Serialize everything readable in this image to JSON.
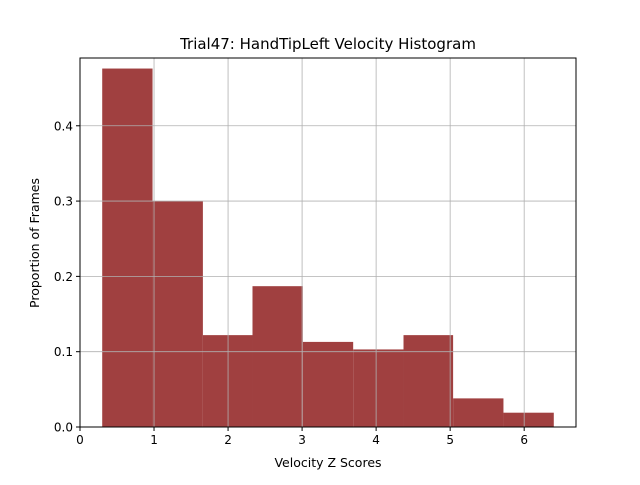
{
  "chart_data": {
    "type": "bar",
    "title": "Trial47: HandTipLeft Velocity Histogram",
    "xlabel": "Velocity Z Scores",
    "ylabel": "Proportion of Frames",
    "xlim": [
      0,
      6.7
    ],
    "ylim": [
      0,
      0.49
    ],
    "xticks": [
      0,
      1,
      2,
      3,
      4,
      5,
      6
    ],
    "xtick_labels": [
      "0",
      "1",
      "2",
      "3",
      "4",
      "5",
      "6"
    ],
    "yticks": [
      0.0,
      0.1,
      0.2,
      0.3,
      0.4
    ],
    "ytick_labels": [
      "0.0",
      "0.1",
      "0.2",
      "0.3",
      "0.4"
    ],
    "grid": true,
    "bar_color": "#a04040",
    "bin_edges": [
      0.3,
      0.98,
      1.66,
      2.33,
      3.01,
      3.69,
      4.37,
      5.04,
      5.72,
      6.4
    ],
    "values": [
      0.476,
      0.3,
      0.122,
      0.187,
      0.113,
      0.103,
      0.122,
      0.038,
      0.019
    ]
  }
}
